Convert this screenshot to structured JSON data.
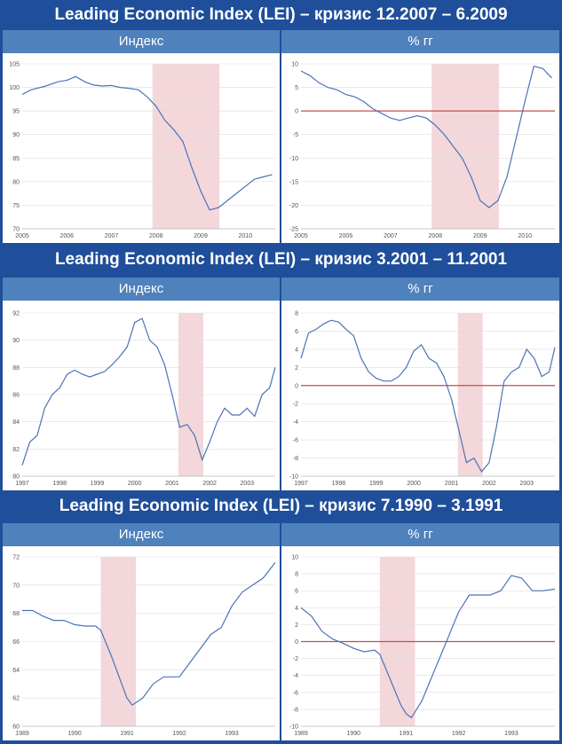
{
  "sections": [
    {
      "title": "Leading Economic Index (LEI) – кризис 12.2007 – 6.2009",
      "left_header": "Индекс",
      "right_header": "% гг"
    },
    {
      "title": "Leading Economic Index (LEI) – кризис 3.2001 – 11.2001",
      "left_header": "Индекс",
      "right_header": "% гг"
    },
    {
      "title": "Leading Economic Index (LEI) – кризис 7.1990 – 3.1991",
      "left_header": "Индекс",
      "right_header": "% гг"
    }
  ],
  "colors": {
    "line": "#4a73b8",
    "zero_line": "#c0504d",
    "recession": "#f4d7da",
    "grid": "#dddddd",
    "background": "#1f4e9a",
    "header": "#4f81bd"
  },
  "chart_data": [
    {
      "id": "lei-2007-index",
      "type": "line",
      "xlim": [
        2005,
        2010.67
      ],
      "ylim": [
        70,
        105
      ],
      "yticks": [
        70,
        75,
        80,
        85,
        90,
        95,
        100,
        105
      ],
      "xticks": [
        2005,
        2006,
        2007,
        2008,
        2009,
        2010
      ],
      "recession": [
        2007.92,
        2009.42
      ],
      "zero_line": false,
      "series": [
        {
          "x": [
            2005,
            2005.2,
            2005.5,
            2005.8,
            2006,
            2006.2,
            2006.4,
            2006.6,
            2006.8,
            2007,
            2007.2,
            2007.4,
            2007.6,
            2007.8,
            2008,
            2008.2,
            2008.4,
            2008.6,
            2008.8,
            2009,
            2009.2,
            2009.4,
            2009.6,
            2009.8,
            2010,
            2010.2,
            2010.4,
            2010.6
          ],
          "y": [
            98.5,
            99.5,
            100.2,
            101.2,
            101.5,
            102.3,
            101.2,
            100.5,
            100.3,
            100.4,
            100,
            99.8,
            99.5,
            98,
            96,
            93,
            91,
            88.5,
            83,
            78,
            74,
            74.5,
            76,
            77.5,
            79,
            80.5,
            81,
            81.5
          ]
        }
      ]
    },
    {
      "id": "lei-2007-yoy",
      "type": "line",
      "xlim": [
        2005,
        2010.67
      ],
      "ylim": [
        -25,
        10
      ],
      "yticks": [
        -25,
        -20,
        -15,
        -10,
        -5,
        0,
        5,
        10
      ],
      "xticks": [
        2005,
        2006,
        2007,
        2008,
        2009,
        2010
      ],
      "recession": [
        2007.92,
        2009.42
      ],
      "zero_line": true,
      "series": [
        {
          "x": [
            2005,
            2005.2,
            2005.4,
            2005.6,
            2005.8,
            2006,
            2006.2,
            2006.4,
            2006.6,
            2006.8,
            2007,
            2007.2,
            2007.4,
            2007.6,
            2007.8,
            2008,
            2008.2,
            2008.4,
            2008.6,
            2008.8,
            2009,
            2009.2,
            2009.4,
            2009.6,
            2009.8,
            2010,
            2010.2,
            2010.4,
            2010.6
          ],
          "y": [
            8.5,
            7.5,
            6,
            5,
            4.5,
            3.5,
            3,
            2,
            0.5,
            -0.5,
            -1.5,
            -2,
            -1.5,
            -1,
            -1.5,
            -3,
            -5,
            -7.5,
            -10,
            -14,
            -19,
            -20.5,
            -19,
            -14,
            -6,
            2,
            9.5,
            9,
            7
          ]
        }
      ]
    },
    {
      "id": "lei-2001-index",
      "type": "line",
      "xlim": [
        1997,
        2003.75
      ],
      "ylim": [
        80,
        92
      ],
      "yticks": [
        80,
        82,
        84,
        86,
        88,
        90,
        92
      ],
      "xticks": [
        1997,
        1998,
        1999,
        2000,
        2001,
        2002,
        2003
      ],
      "recession": [
        2001.17,
        2001.83
      ],
      "zero_line": false,
      "series": [
        {
          "x": [
            1997,
            1997.2,
            1997.4,
            1997.6,
            1997.8,
            1998,
            1998.2,
            1998.4,
            1998.6,
            1998.8,
            1999,
            1999.2,
            1999.4,
            1999.6,
            1999.8,
            2000,
            2000.2,
            2000.4,
            2000.6,
            2000.8,
            2001,
            2001.2,
            2001.4,
            2001.6,
            2001.8,
            2002,
            2002.2,
            2002.4,
            2002.6,
            2002.8,
            2003,
            2003.2,
            2003.4,
            2003.6,
            2003.75
          ],
          "y": [
            80.8,
            82.5,
            83,
            85,
            86,
            86.5,
            87.5,
            87.8,
            87.5,
            87.3,
            87.5,
            87.7,
            88.2,
            88.8,
            89.5,
            91.3,
            91.6,
            90,
            89.5,
            88.2,
            86,
            83.6,
            83.8,
            83,
            81.2,
            82.5,
            84,
            85,
            84.5,
            84.5,
            85,
            84.4,
            86,
            86.5,
            88
          ]
        }
      ]
    },
    {
      "id": "lei-2001-yoy",
      "type": "line",
      "xlim": [
        1997,
        2003.75
      ],
      "ylim": [
        -10,
        8
      ],
      "yticks": [
        -10,
        -8,
        -6,
        -4,
        -2,
        0,
        2,
        4,
        6,
        8
      ],
      "xticks": [
        1997,
        1998,
        1999,
        2000,
        2001,
        2002,
        2003
      ],
      "recession": [
        2001.17,
        2001.83
      ],
      "zero_line": true,
      "series": [
        {
          "x": [
            1997,
            1997.2,
            1997.4,
            1997.6,
            1997.8,
            1998,
            1998.2,
            1998.4,
            1998.6,
            1998.8,
            1999,
            1999.2,
            1999.4,
            1999.6,
            1999.8,
            2000,
            2000.2,
            2000.4,
            2000.6,
            2000.8,
            2001,
            2001.2,
            2001.4,
            2001.6,
            2001.8,
            2002,
            2002.2,
            2002.4,
            2002.6,
            2002.8,
            2003,
            2003.2,
            2003.4,
            2003.6,
            2003.75
          ],
          "y": [
            3,
            5.8,
            6.2,
            6.8,
            7.2,
            7,
            6.2,
            5.5,
            3,
            1.5,
            0.8,
            0.5,
            0.5,
            1,
            2,
            3.8,
            4.5,
            3,
            2.5,
            1,
            -1.5,
            -5,
            -8.5,
            -8,
            -9.5,
            -8.5,
            -4.5,
            0.5,
            1.5,
            2,
            4,
            3,
            1,
            1.5,
            4.2
          ]
        }
      ]
    },
    {
      "id": "lei-1990-index",
      "type": "line",
      "xlim": [
        1989,
        1993.83
      ],
      "ylim": [
        60,
        72
      ],
      "yticks": [
        60,
        62,
        64,
        66,
        68,
        70,
        72
      ],
      "xticks": [
        1989,
        1990,
        1991,
        1992,
        1993
      ],
      "recession": [
        1990.5,
        1991.17
      ],
      "zero_line": false,
      "series": [
        {
          "x": [
            1989,
            1989.2,
            1989.4,
            1989.6,
            1989.8,
            1990,
            1990.2,
            1990.4,
            1990.5,
            1990.7,
            1990.9,
            1991,
            1991.1,
            1991.3,
            1991.5,
            1991.7,
            1991.9,
            1992,
            1992.2,
            1992.4,
            1992.6,
            1992.8,
            1993,
            1993.2,
            1993.4,
            1993.6,
            1993.83
          ],
          "y": [
            68.2,
            68.2,
            67.8,
            67.5,
            67.5,
            67.2,
            67.1,
            67.1,
            66.8,
            65,
            63,
            62,
            61.5,
            62,
            63,
            63.5,
            63.5,
            63.5,
            64.5,
            65.5,
            66.5,
            67,
            68.5,
            69.5,
            70,
            70.5,
            71.6
          ]
        }
      ]
    },
    {
      "id": "lei-1990-yoy",
      "type": "line",
      "xlim": [
        1989,
        1993.83
      ],
      "ylim": [
        -10,
        10
      ],
      "yticks": [
        -10,
        -8,
        -6,
        -4,
        -2,
        0,
        2,
        4,
        6,
        8,
        10
      ],
      "xticks": [
        1989,
        1990,
        1991,
        1992,
        1993
      ],
      "recession": [
        1990.5,
        1991.17
      ],
      "zero_line": true,
      "series": [
        {
          "x": [
            1989,
            1989.2,
            1989.4,
            1989.6,
            1989.8,
            1990,
            1990.2,
            1990.4,
            1990.5,
            1990.7,
            1990.9,
            1991,
            1991.1,
            1991.3,
            1991.5,
            1991.7,
            1991.9,
            1992,
            1992.2,
            1992.4,
            1992.6,
            1992.8,
            1993,
            1993.2,
            1993.4,
            1993.6,
            1993.83
          ],
          "y": [
            4,
            3,
            1.2,
            0.3,
            -0.2,
            -0.8,
            -1.2,
            -1,
            -1.5,
            -4.5,
            -7.5,
            -8.5,
            -9,
            -7,
            -4,
            -1,
            2,
            3.5,
            5.5,
            5.5,
            5.5,
            6,
            7.8,
            7.5,
            6,
            6,
            6.2
          ]
        }
      ]
    }
  ]
}
